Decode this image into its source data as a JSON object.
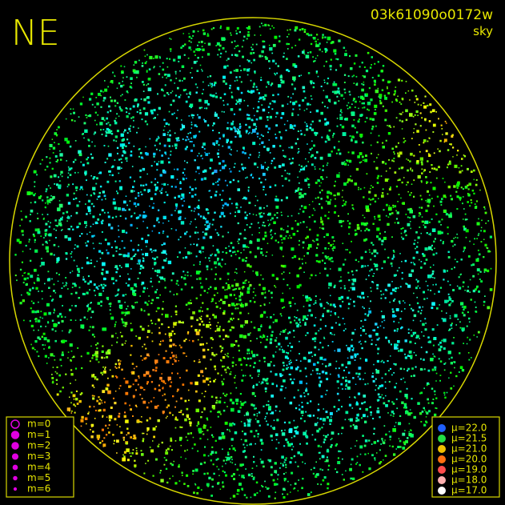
{
  "orientation": "NE",
  "header": {
    "id": "03k61090o0172w",
    "filter": "sky"
  },
  "magnitude_legend": [
    "m=0",
    "m=1",
    "m=2",
    "m=3",
    "m=4",
    "m=5",
    "m=6"
  ],
  "brightness_legend": [
    "μ=22.0",
    "μ=21.5",
    "μ=21.0",
    "μ=20.0",
    "μ=19.0",
    "μ=18.0",
    "μ=17.0"
  ]
}
